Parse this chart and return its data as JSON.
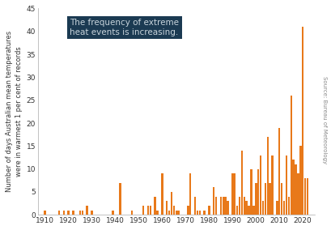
{
  "years": [
    1910,
    1911,
    1912,
    1913,
    1914,
    1915,
    1916,
    1917,
    1918,
    1919,
    1920,
    1921,
    1922,
    1923,
    1924,
    1925,
    1926,
    1927,
    1928,
    1929,
    1930,
    1931,
    1932,
    1933,
    1934,
    1935,
    1936,
    1937,
    1938,
    1939,
    1940,
    1941,
    1942,
    1943,
    1944,
    1945,
    1946,
    1947,
    1948,
    1949,
    1950,
    1951,
    1952,
    1953,
    1954,
    1955,
    1956,
    1957,
    1958,
    1959,
    1960,
    1961,
    1962,
    1963,
    1964,
    1965,
    1966,
    1967,
    1968,
    1969,
    1970,
    1971,
    1972,
    1973,
    1974,
    1975,
    1976,
    1977,
    1978,
    1979,
    1980,
    1981,
    1982,
    1983,
    1984,
    1985,
    1986,
    1987,
    1988,
    1989,
    1990,
    1991,
    1992,
    1993,
    1994,
    1995,
    1996,
    1997,
    1998,
    1999,
    2000,
    2001,
    2002,
    2003,
    2004,
    2005,
    2006,
    2007,
    2008,
    2009,
    2010,
    2011,
    2012,
    2013,
    2014,
    2015,
    2016,
    2017,
    2018,
    2019,
    2020,
    2021,
    2022,
    2023
  ],
  "values": [
    1,
    0,
    0,
    0,
    0,
    0,
    1,
    0,
    1,
    0,
    1,
    0,
    1,
    0,
    0,
    1,
    1,
    0,
    2,
    0,
    1,
    0,
    0,
    0,
    0,
    0,
    0,
    0,
    0,
    1,
    0,
    0,
    7,
    0,
    0,
    0,
    0,
    1,
    0,
    0,
    0,
    0,
    2,
    0,
    2,
    2,
    0,
    4,
    1,
    0,
    9,
    0,
    3,
    1,
    5,
    2,
    1,
    1,
    0,
    0,
    0,
    2,
    9,
    0,
    4,
    1,
    1,
    0,
    1,
    0,
    2,
    0,
    6,
    4,
    0,
    4,
    4,
    4,
    3,
    0,
    9,
    9,
    2,
    4,
    14,
    4,
    3,
    2,
    10,
    2,
    7,
    10,
    13,
    3,
    7,
    17,
    7,
    13,
    0,
    3,
    19,
    7,
    3,
    13,
    4,
    26,
    12,
    11,
    9,
    15,
    41,
    8,
    8,
    0
  ],
  "bar_color": "#e8791a",
  "bg_color": "#ffffff",
  "plot_bg_color": "#ffffff",
  "ylabel_line1": "Number of days Australian mean temperatures",
  "ylabel_line2": "were in warmest 1 per cent of records",
  "ylim": [
    0,
    45
  ],
  "yticks": [
    0,
    5,
    10,
    15,
    20,
    25,
    30,
    35,
    40,
    45
  ],
  "xtick_years": [
    1910,
    1920,
    1930,
    1940,
    1950,
    1960,
    1970,
    1980,
    1990,
    2000,
    2010,
    2020
  ],
  "annotation_text": "The frequency of extreme\nheat events is increasing.",
  "annotation_bg": "#1b3a52",
  "annotation_text_color": "#c8d4dc",
  "source_text": "Source: Bureau of Meteorology",
  "axis_fontsize": 6.5,
  "ylabel_fontsize": 6.0,
  "annotation_fontsize": 7.5,
  "source_fontsize": 5.0,
  "spine_color": "#aaaaaa"
}
